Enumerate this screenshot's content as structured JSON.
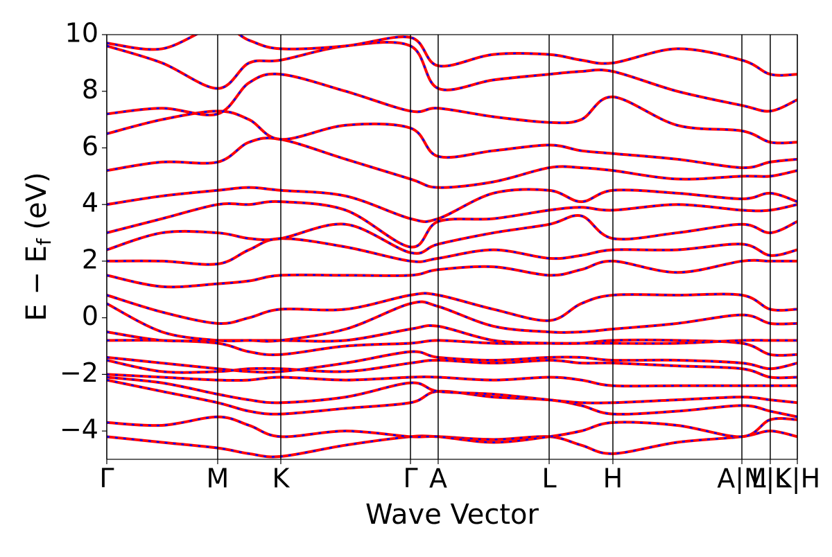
{
  "chart_data": {
    "type": "line",
    "xlabel": "Wave Vector",
    "ylabel": [
      "E − E",
      "f",
      " (eV)"
    ],
    "xlim": [
      0,
      1
    ],
    "xticks": [
      {
        "value": 0,
        "label": "Γ"
      },
      {
        "value": 0.1606,
        "label": "M"
      },
      {
        "value": 0.252,
        "label": "K"
      },
      {
        "value": 0.4398,
        "label": "Γ"
      },
      {
        "value": 0.4799,
        "label": "A"
      },
      {
        "value": 0.6406,
        "label": "L"
      },
      {
        "value": 0.7329,
        "label": "H"
      },
      {
        "value": 0.9197,
        "label": "A|M"
      },
      {
        "value": 0.9608,
        "label": "L|L"
      },
      {
        "value": 1,
        "label": "K|H"
      }
    ],
    "ylim": [
      -5,
      10
    ],
    "yticks": [
      {
        "value": -4,
        "label": "−4"
      },
      {
        "value": -2,
        "label": "−2"
      },
      0,
      2,
      4,
      6,
      8,
      10
    ],
    "grid": "x",
    "color": "#ff0000",
    "overlay_color": "#0000ff",
    "x": [
      0,
      0.08,
      0.1606,
      0.206,
      0.252,
      0.346,
      0.4398,
      0.4799,
      0.56,
      0.6406,
      0.687,
      0.7329,
      0.826,
      0.9197,
      0.9608,
      1
    ],
    "series": [
      {
        "values": [
          -4.2,
          -4.4,
          -4.6,
          -4.8,
          -4.9,
          -4.5,
          -4.2,
          -4.2,
          -4.3,
          -4.2,
          -4.5,
          -4.8,
          -4.4,
          -4.2,
          -4.0,
          -4.2
        ]
      },
      {
        "values": [
          -3.7,
          -3.8,
          -3.5,
          -3.8,
          -4.2,
          -4.0,
          -4.2,
          -4.2,
          -4.4,
          -4.2,
          -4.0,
          -3.7,
          -3.8,
          -4.2,
          -3.6,
          -3.6
        ]
      },
      {
        "values": [
          -2.2,
          -2.6,
          -3.0,
          -3.3,
          -3.4,
          -3.2,
          -3.0,
          -2.6,
          -2.8,
          -2.9,
          -3.1,
          -3.4,
          -3.3,
          -3.1,
          -3.3,
          -3.5
        ]
      },
      {
        "values": [
          -2.1,
          -2.3,
          -2.7,
          -2.9,
          -3.0,
          -2.8,
          -2.3,
          -2.6,
          -2.7,
          -2.9,
          -3.0,
          -3.0,
          -2.9,
          -2.8,
          -2.9,
          -3.0
        ]
      },
      {
        "values": [
          -2.0,
          -2.1,
          -2.2,
          -2.2,
          -2.1,
          -2.2,
          -2.1,
          -2.1,
          -2.2,
          -2.1,
          -2.2,
          -2.4,
          -2.4,
          -2.4,
          -2.4,
          -2.4
        ]
      },
      {
        "values": [
          -1.5,
          -1.9,
          -1.9,
          -1.8,
          -1.8,
          -1.9,
          -1.6,
          -1.5,
          -1.6,
          -1.5,
          -1.6,
          -1.6,
          -1.7,
          -1.8,
          -2.1,
          -2.1
        ]
      },
      {
        "values": [
          -1.4,
          -1.6,
          -1.8,
          -1.9,
          -1.9,
          -1.6,
          -1.2,
          -1.4,
          -1.5,
          -1.4,
          -1.4,
          -1.5,
          -1.5,
          -1.6,
          -1.8,
          -1.6
        ]
      },
      {
        "values": [
          -0.8,
          -0.8,
          -0.9,
          -1.2,
          -1.3,
          -1.0,
          -0.9,
          -0.8,
          -0.9,
          -0.9,
          -0.9,
          -0.8,
          -0.8,
          -0.9,
          -1.3,
          -1.3
        ]
      },
      {
        "values": [
          -0.5,
          -0.8,
          -0.8,
          -0.8,
          -0.8,
          -0.8,
          -0.4,
          -0.3,
          -0.8,
          -0.9,
          -0.9,
          -0.9,
          -0.9,
          -0.8,
          -0.8,
          -0.8
        ]
      },
      {
        "values": [
          0.5,
          -0.5,
          -0.8,
          -0.8,
          -0.8,
          -0.4,
          0.5,
          0.4,
          -0.3,
          -0.5,
          -0.5,
          -0.4,
          -0.2,
          0.1,
          -0.2,
          -0.2
        ]
      },
      {
        "values": [
          0.8,
          0.2,
          -0.2,
          0.0,
          0.3,
          0.3,
          0.8,
          0.8,
          0.3,
          -0.1,
          0.5,
          0.8,
          0.8,
          0.8,
          0.3,
          0.3
        ]
      },
      {
        "values": [
          1.5,
          1.1,
          1.2,
          1.3,
          1.5,
          1.5,
          1.5,
          1.7,
          1.8,
          1.5,
          1.7,
          2.0,
          1.6,
          2.0,
          2.0,
          2.0
        ]
      },
      {
        "values": [
          2.0,
          2.0,
          1.9,
          2.4,
          2.8,
          2.5,
          2.0,
          2.1,
          2.4,
          2.1,
          2.2,
          2.4,
          2.4,
          2.6,
          2.2,
          2.4
        ]
      },
      {
        "values": [
          2.4,
          3.0,
          3.0,
          2.8,
          2.8,
          3.3,
          2.3,
          2.6,
          3.0,
          3.3,
          3.6,
          2.8,
          3.0,
          3.3,
          3.0,
          3.4
        ]
      },
      {
        "values": [
          3.0,
          3.5,
          4.0,
          4.0,
          4.1,
          3.8,
          2.5,
          3.4,
          3.5,
          3.8,
          3.9,
          3.8,
          4.0,
          3.8,
          3.8,
          4.0
        ]
      },
      {
        "values": [
          4.0,
          4.3,
          4.5,
          4.6,
          4.5,
          4.3,
          3.5,
          3.5,
          4.4,
          4.5,
          4.1,
          4.5,
          4.4,
          4.2,
          4.4,
          4.1
        ]
      },
      {
        "values": [
          5.2,
          5.5,
          5.5,
          6.2,
          6.3,
          5.6,
          4.9,
          4.6,
          4.8,
          5.3,
          5.3,
          5.2,
          4.9,
          5.0,
          5.0,
          5.2
        ]
      },
      {
        "values": [
          6.5,
          7.0,
          7.3,
          7.0,
          6.3,
          6.8,
          6.7,
          5.7,
          5.9,
          6.1,
          5.9,
          5.8,
          5.6,
          5.3,
          5.5,
          5.6
        ]
      },
      {
        "values": [
          7.2,
          7.4,
          7.2,
          8.3,
          8.6,
          8.0,
          7.3,
          7.4,
          7.1,
          6.9,
          7.0,
          7.8,
          6.8,
          6.6,
          6.2,
          6.2
        ]
      },
      {
        "values": [
          9.6,
          9.0,
          8.1,
          9.0,
          9.1,
          9.6,
          9.6,
          8.1,
          8.4,
          8.6,
          8.7,
          8.7,
          8.0,
          7.5,
          7.3,
          7.7
        ]
      },
      {
        "values": [
          9.7,
          9.5,
          10.3,
          9.8,
          9.5,
          9.6,
          9.9,
          8.9,
          9.3,
          9.3,
          9.1,
          9.0,
          9.5,
          9.1,
          8.6,
          8.6
        ]
      }
    ]
  }
}
